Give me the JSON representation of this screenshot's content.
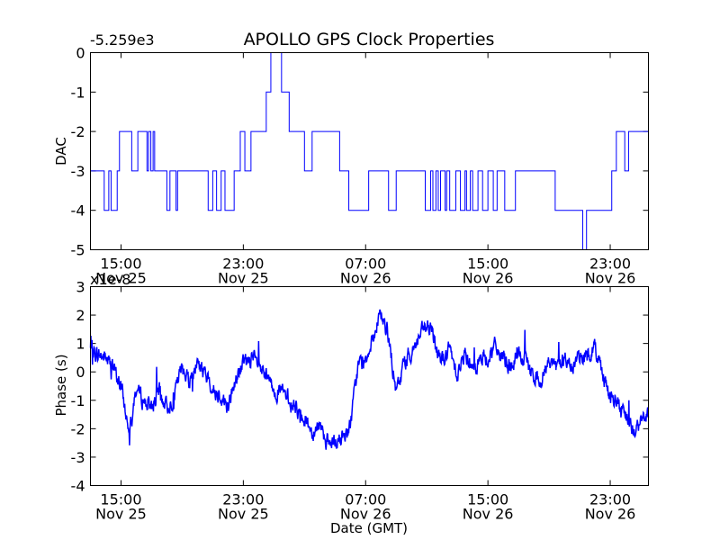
{
  "chart_data": [
    {
      "type": "line",
      "title": "APOLLO GPS Clock Properties",
      "xlabel": "",
      "ylabel": "DAC",
      "offset_label": "-5.259e3",
      "ylim": [
        -5,
        0
      ],
      "yticks": [
        0,
        -1,
        -2,
        -3,
        -4,
        -5
      ],
      "ytick_labels": [
        "0",
        "-1",
        "-2",
        "-3",
        "-4",
        "-5"
      ],
      "xlim_hours": [
        0,
        36.5
      ],
      "xticks_hours": [
        2,
        10,
        18,
        26,
        34
      ],
      "xtick_labels": [
        [
          "15:00",
          "Nov 25"
        ],
        [
          "23:00",
          "Nov 25"
        ],
        [
          "07:00",
          "Nov 26"
        ],
        [
          "15:00",
          "Nov 26"
        ],
        [
          "23:00",
          "Nov 26"
        ]
      ],
      "series": [
        {
          "name": "DAC",
          "color": "#0000ff",
          "step": true,
          "x_hours": [
            0,
            0.9,
            1.2,
            1.35,
            1.75,
            1.9,
            2.7,
            3.1,
            3.7,
            3.8,
            3.95,
            4.1,
            4.2,
            4.4,
            4.5,
            5.0,
            5.2,
            5.6,
            5.7,
            5.9,
            6.4,
            7.7,
            8.0,
            8.25,
            8.55,
            8.8,
            9.25,
            9.4,
            9.7,
            9.8,
            10.1,
            10.5,
            11.5,
            11.8,
            12.5,
            13.0,
            13.4,
            13.6,
            14.0,
            14.5,
            16.3,
            16.9,
            18.2,
            19.5,
            20.0,
            21.9,
            22.25,
            22.4,
            22.6,
            22.75,
            22.9,
            23.2,
            23.3,
            23.5,
            23.9,
            24.2,
            24.5,
            24.6,
            24.85,
            25.0,
            25.35,
            25.65,
            26.0,
            26.35,
            26.6,
            26.75,
            27.1,
            27.8,
            28.05,
            30.4,
            30.9,
            32.2,
            32.45,
            34.1,
            34.4,
            34.95,
            35.2,
            36.5
          ],
          "values": [
            -3,
            -4,
            -3,
            -4,
            -3,
            -2,
            -3,
            -2,
            -3,
            -2,
            -3,
            -2,
            -3,
            -3,
            -3,
            -4,
            -3,
            -4,
            -3,
            -3,
            -3,
            -4,
            -3,
            -4,
            -3,
            -4,
            -4,
            -3,
            -3,
            -2,
            -3,
            -2,
            -1,
            0,
            -1,
            -2,
            -2,
            -2,
            -3,
            -2,
            -3,
            -4,
            -3,
            -4,
            -3,
            -4,
            -3,
            -4,
            -3,
            -4,
            -3,
            -4,
            -3,
            -4,
            -3,
            -4,
            -3,
            -4,
            -3,
            -4,
            -3,
            -4,
            -3,
            -4,
            -3,
            -3,
            -4,
            -3,
            -3,
            -4,
            -4,
            -5,
            -4,
            -3,
            -2,
            -3,
            -2,
            -2
          ]
        }
      ]
    },
    {
      "type": "line",
      "title": "",
      "xlabel": "Date (GMT)",
      "ylabel": "Phase (s)",
      "offset_label": "x1e-8",
      "ylim": [
        -4,
        3
      ],
      "yticks": [
        3,
        2,
        1,
        0,
        -1,
        -2,
        -3,
        -4
      ],
      "ytick_labels": [
        "3",
        "2",
        "1",
        "0",
        "-1",
        "-2",
        "-3",
        "-4"
      ],
      "xlim_hours": [
        0,
        36.5
      ],
      "xticks_hours": [
        2,
        10,
        18,
        26,
        34
      ],
      "xtick_labels": [
        [
          "15:00",
          "Nov 25"
        ],
        [
          "23:00",
          "Nov 25"
        ],
        [
          "07:00",
          "Nov 26"
        ],
        [
          "15:00",
          "Nov 26"
        ],
        [
          "23:00",
          "Nov 26"
        ]
      ],
      "series": [
        {
          "name": "Phase",
          "color": "#0000ff",
          "noise": 0.22,
          "x_hours": [
            0,
            0.5,
            1.0,
            1.5,
            2.0,
            2.5,
            3.0,
            3.5,
            4.0,
            4.5,
            5.0,
            5.5,
            6.0,
            6.5,
            7.0,
            7.5,
            8.0,
            8.5,
            9.0,
            9.5,
            10.0,
            10.5,
            11.0,
            11.5,
            12.0,
            12.5,
            13.0,
            13.5,
            14.0,
            14.5,
            15.0,
            15.5,
            16.0,
            16.5,
            17.0,
            17.5,
            18.0,
            18.5,
            19.0,
            19.5,
            20.0,
            20.5,
            21.0,
            21.5,
            22.0,
            22.5,
            23.0,
            23.5,
            24.0,
            24.5,
            25.0,
            25.5,
            26.0,
            26.5,
            27.0,
            27.5,
            28.0,
            28.5,
            29.0,
            29.5,
            30.0,
            30.5,
            31.0,
            31.5,
            32.0,
            32.5,
            33.0,
            33.5,
            34.0,
            34.5,
            35.0,
            35.5,
            36.0,
            36.5
          ],
          "values": [
            0.8,
            0.6,
            0.5,
            0.1,
            -0.5,
            -2.0,
            -0.6,
            -1.0,
            -1.2,
            -0.7,
            -1.3,
            -0.8,
            0.2,
            -0.3,
            0.4,
            -0.1,
            -0.6,
            -0.8,
            -1.2,
            -0.3,
            0.3,
            0.5,
            0.2,
            -0.2,
            -0.6,
            -0.7,
            -1.0,
            -1.3,
            -1.6,
            -2.1,
            -1.8,
            -2.5,
            -2.6,
            -2.3,
            -1.9,
            0.2,
            0.5,
            1.2,
            2.0,
            1.3,
            -0.8,
            0.3,
            0.7,
            1.2,
            1.6,
            1.2,
            0.4,
            0.8,
            0.0,
            0.6,
            0.3,
            0.4,
            0.5,
            0.9,
            0.4,
            0.2,
            0.6,
            0.3,
            -0.2,
            -0.3,
            0.4,
            0.2,
            0.5,
            0.1,
            0.6,
            0.5,
            0.9,
            0.0,
            -0.9,
            -1.1,
            -1.6,
            -2.1,
            -1.8,
            -1.4
          ]
        }
      ]
    }
  ]
}
